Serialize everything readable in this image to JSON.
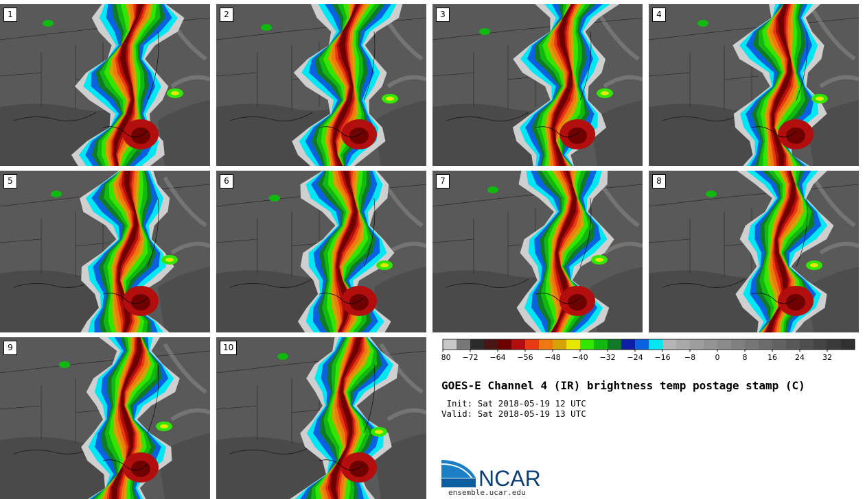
{
  "title": "GOES-E Channel 4 (IR) brightness temp postage stamp (C)",
  "init_label": " Init:",
  "init_value": "Sat 2018-05-19 12 UTC",
  "valid_label": "Valid:",
  "valid_value": "Sat 2018-05-19 13 UTC",
  "logo_text": "NCAR",
  "logo_url": "ensemble.ucar.edu",
  "panels": [
    {
      "label": "1"
    },
    {
      "label": "2"
    },
    {
      "label": "3"
    },
    {
      "label": "4"
    },
    {
      "label": "5"
    },
    {
      "label": "6"
    },
    {
      "label": "7"
    },
    {
      "label": "8"
    },
    {
      "label": "9"
    },
    {
      "label": "10"
    }
  ],
  "colorbar": {
    "tick_labels": [
      "−80",
      "−72",
      "−64",
      "−56",
      "−48",
      "−40",
      "−32",
      "−24",
      "−16",
      "−8",
      "0",
      "8",
      "16",
      "24",
      "32"
    ],
    "colors": [
      "#c8c8c8",
      "#777777",
      "#2b2b2b",
      "#4a1515",
      "#6e0000",
      "#b30e0e",
      "#e83a12",
      "#f07810",
      "#d4a106",
      "#e6e600",
      "#33e600",
      "#10b810",
      "#107a28",
      "#0c1fa6",
      "#0a62e0",
      "#00e6f2",
      "#b4b4b4",
      "#a8a8a8",
      "#9e9e9e",
      "#949494",
      "#8a8a8a",
      "#808080",
      "#767676",
      "#6c6c6c",
      "#626262",
      "#585858",
      "#4e4e4e",
      "#444444",
      "#3a3a3a",
      "#303030"
    ]
  }
}
